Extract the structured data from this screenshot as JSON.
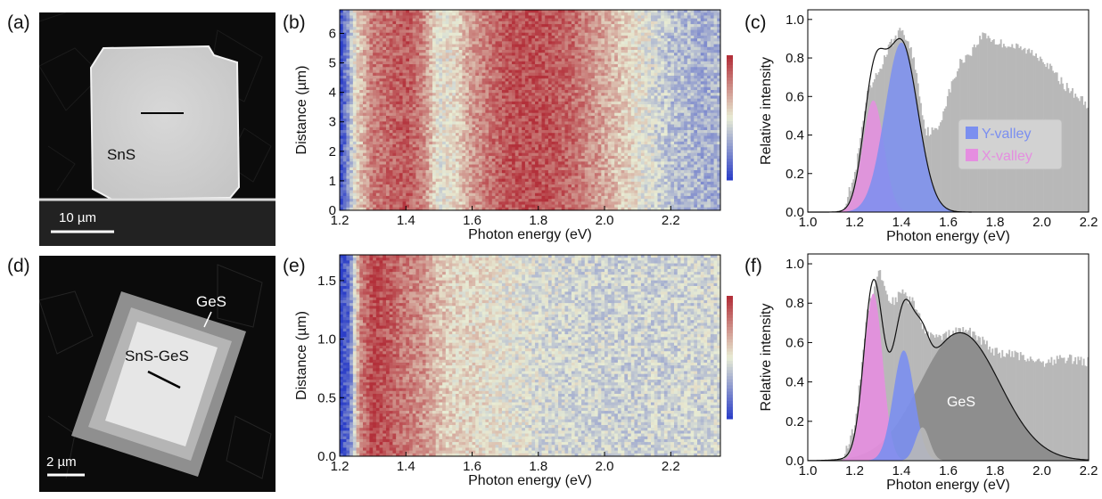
{
  "panels": {
    "a": {
      "letter": "(a)",
      "material_label": "SnS",
      "scalebar_label": "10 µm"
    },
    "b": {
      "letter": "(b)"
    },
    "c": {
      "letter": "(c)",
      "legend": [
        "Y-valley",
        "X-valley"
      ]
    },
    "d": {
      "letter": "(d)",
      "material_labels": [
        "GeS",
        "SnS-GeS"
      ],
      "scalebar_label": "2 µm"
    },
    "e": {
      "letter": "(e)"
    },
    "f": {
      "letter": "(f)",
      "annotation": "GeS"
    }
  },
  "colors": {
    "y_valley": "#7b8ff0",
    "x_valley": "#e58ee0",
    "data_gray": "#b8b8b8",
    "ges_component": "#8a8a8a",
    "colormap_low": "#2c3fc8",
    "colormap_mid": "#e8ecd4",
    "colormap_high": "#b3303a"
  },
  "chart_data": [
    {
      "panel": "b",
      "type": "heatmap",
      "xlabel": "Photon energy (eV)",
      "ylabel": "Distance (µm)",
      "xlim": [
        1.2,
        2.35
      ],
      "ylim": [
        0,
        6.8
      ],
      "xticks": [
        1.2,
        1.4,
        1.6,
        1.8,
        2.0,
        2.2
      ],
      "xtick_labels": [
        "1.2",
        "1.4",
        "1.6",
        "1.8",
        "2.0",
        "2.2"
      ],
      "yticks": [
        0,
        1,
        2,
        3,
        4,
        5,
        6
      ],
      "ytick_labels": [
        "0",
        "1",
        "2",
        "3",
        "4",
        "5",
        "6"
      ],
      "colorbar": true,
      "profile": {
        "energy": [
          1.2,
          1.22,
          1.25,
          1.3,
          1.35,
          1.4,
          1.45,
          1.5,
          1.55,
          1.6,
          1.7,
          1.8,
          1.9,
          2.0,
          2.1,
          2.2,
          2.3,
          2.35
        ],
        "intensity": [
          0.0,
          0.2,
          0.55,
          0.8,
          0.85,
          0.9,
          0.78,
          0.5,
          0.55,
          0.72,
          0.9,
          0.92,
          0.85,
          0.68,
          0.52,
          0.38,
          0.32,
          0.35
        ]
      }
    },
    {
      "panel": "c",
      "type": "area",
      "xlabel": "Photon energy (eV)",
      "ylabel": "Relative intensity",
      "xlim": [
        1.0,
        2.2
      ],
      "ylim": [
        0,
        1.05
      ],
      "xticks": [
        1.0,
        1.2,
        1.4,
        1.6,
        1.8,
        2.0,
        2.2
      ],
      "xtick_labels": [
        "1.0",
        "1.2",
        "1.4",
        "1.6",
        "1.8",
        "2.0",
        "2.2"
      ],
      "yticks": [
        0,
        0.2,
        0.4,
        0.6,
        0.8,
        1.0
      ],
      "ytick_labels": [
        "0.0",
        "0.2",
        "0.4",
        "0.6",
        "0.8",
        "1.0"
      ],
      "legend_position": "right",
      "series": [
        {
          "name": "X-valley",
          "type": "gaussian",
          "center": 1.28,
          "amplitude": 0.58,
          "sigma": 0.045
        },
        {
          "name": "Y-valley",
          "type": "gaussian",
          "center": 1.4,
          "amplitude": 0.88,
          "sigma": 0.07
        },
        {
          "type": "spectrum",
          "x": [
            1.15,
            1.2,
            1.25,
            1.3,
            1.35,
            1.4,
            1.45,
            1.5,
            1.55,
            1.6,
            1.65,
            1.7,
            1.75,
            1.8,
            1.85,
            1.9,
            1.95,
            2.0,
            2.05,
            2.1,
            2.15,
            2.2
          ],
          "y": [
            0.02,
            0.2,
            0.6,
            0.73,
            0.87,
            0.95,
            0.8,
            0.42,
            0.42,
            0.62,
            0.78,
            0.84,
            0.93,
            0.88,
            0.87,
            0.85,
            0.83,
            0.8,
            0.72,
            0.65,
            0.6,
            0.55
          ]
        }
      ]
    },
    {
      "panel": "e",
      "type": "heatmap",
      "xlabel": "Photon energy (eV)",
      "ylabel": "Distance (µm)",
      "xlim": [
        1.2,
        2.35
      ],
      "ylim": [
        0,
        1.72
      ],
      "xticks": [
        1.2,
        1.4,
        1.6,
        1.8,
        2.0,
        2.2
      ],
      "xtick_labels": [
        "1.2",
        "1.4",
        "1.6",
        "1.8",
        "2.0",
        "2.2"
      ],
      "yticks": [
        0,
        0.5,
        1.0,
        1.5
      ],
      "ytick_labels": [
        "0.0",
        "0.5",
        "1.0",
        "1.5"
      ],
      "colorbar": true,
      "profile": {
        "energy": [
          1.2,
          1.23,
          1.26,
          1.3,
          1.35,
          1.4,
          1.45,
          1.5,
          1.55,
          1.6,
          1.7,
          1.8,
          1.9,
          2.0,
          2.2,
          2.35
        ],
        "intensity": [
          0.0,
          0.15,
          0.75,
          0.95,
          0.88,
          0.8,
          0.74,
          0.62,
          0.56,
          0.55,
          0.5,
          0.46,
          0.44,
          0.43,
          0.43,
          0.44
        ]
      }
    },
    {
      "panel": "f",
      "type": "area",
      "xlabel": "Photon energy (eV)",
      "ylabel": "Relative intensity",
      "xlim": [
        1.0,
        2.2
      ],
      "ylim": [
        0,
        1.05
      ],
      "xticks": [
        1.0,
        1.2,
        1.4,
        1.6,
        1.8,
        2.0,
        2.2
      ],
      "xtick_labels": [
        "1.0",
        "1.2",
        "1.4",
        "1.6",
        "1.8",
        "2.0",
        "2.2"
      ],
      "yticks": [
        0,
        0.2,
        0.4,
        0.6,
        0.8,
        1.0
      ],
      "ytick_labels": [
        "0.0",
        "0.2",
        "0.4",
        "0.6",
        "0.8",
        "1.0"
      ],
      "series": [
        {
          "name": "GeS",
          "type": "gaussian",
          "center": 1.65,
          "amplitude": 0.65,
          "sigma": 0.17
        },
        {
          "type": "gaussian",
          "center": 1.28,
          "amplitude": 0.85,
          "sigma": 0.04
        },
        {
          "type": "gaussian",
          "center": 1.41,
          "amplitude": 0.56,
          "sigma": 0.045
        },
        {
          "type": "gaussian",
          "center": 1.49,
          "amplitude": 0.17,
          "sigma": 0.03
        },
        {
          "type": "spectrum",
          "x": [
            1.15,
            1.2,
            1.25,
            1.3,
            1.35,
            1.4,
            1.45,
            1.5,
            1.55,
            1.6,
            1.65,
            1.7,
            1.75,
            1.8,
            1.85,
            1.9,
            1.95,
            2.0,
            2.05,
            2.1,
            2.15,
            2.2
          ],
          "y": [
            0.02,
            0.18,
            0.75,
            0.97,
            0.8,
            0.85,
            0.8,
            0.65,
            0.62,
            0.64,
            0.66,
            0.65,
            0.6,
            0.55,
            0.54,
            0.53,
            0.52,
            0.5,
            0.51,
            0.52,
            0.51,
            0.5
          ]
        }
      ]
    }
  ]
}
